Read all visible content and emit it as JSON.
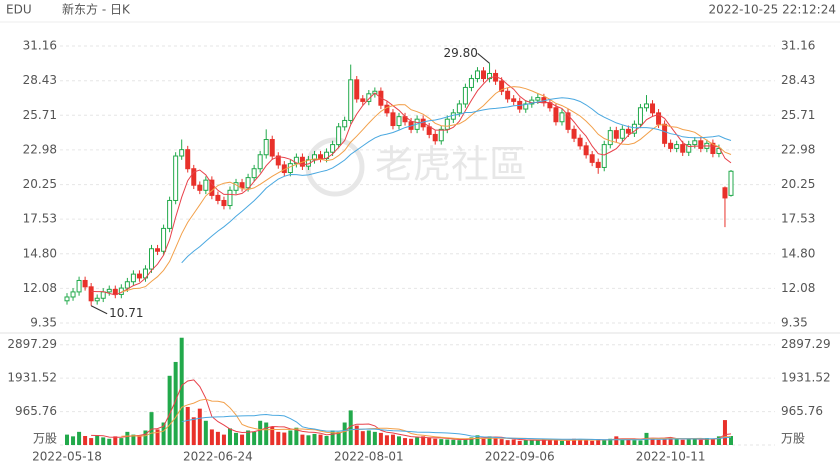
{
  "header": {
    "symbol": "EDU",
    "name": "新东方 - 日K",
    "timestamp": "2022-10-25 22:12:24",
    "watermark": "老虎社區"
  },
  "chart_data": {
    "type": "candlestick",
    "categories": [
      "2022-05-18",
      null,
      null,
      null,
      null,
      null,
      null,
      null,
      null,
      null,
      null,
      null,
      null,
      null,
      null,
      null,
      null,
      null,
      null,
      null,
      null,
      null,
      null,
      null,
      null,
      "2022-06-24",
      null,
      null,
      null,
      null,
      null,
      null,
      null,
      null,
      null,
      null,
      null,
      null,
      null,
      null,
      null,
      null,
      null,
      null,
      null,
      null,
      null,
      null,
      null,
      null,
      "2022-08-01",
      null,
      null,
      null,
      null,
      null,
      null,
      null,
      null,
      null,
      null,
      null,
      null,
      null,
      null,
      null,
      null,
      null,
      null,
      null,
      null,
      null,
      null,
      null,
      null,
      "2022-09-06",
      null,
      null,
      null,
      null,
      null,
      null,
      null,
      null,
      null,
      null,
      null,
      null,
      null,
      null,
      null,
      null,
      null,
      null,
      null,
      null,
      null,
      null,
      null,
      null,
      "2022-10-11",
      null,
      null,
      null,
      null,
      null,
      null,
      null,
      null,
      null,
      null
    ],
    "open": [
      11.1,
      11.4,
      11.8,
      12.7,
      12.2,
      11.1,
      11.3,
      11.8,
      12.0,
      11.6,
      12.1,
      12.6,
      13.2,
      12.9,
      13.6,
      15.2,
      15.0,
      16.8,
      19.0,
      22.5,
      23.0,
      21.5,
      20.2,
      19.8,
      20.6,
      19.4,
      19.0,
      18.6,
      19.8,
      20.4,
      20.0,
      20.8,
      21.5,
      22.6,
      23.8,
      22.5,
      21.8,
      21.2,
      21.9,
      22.4,
      21.7,
      22.2,
      22.6,
      22.3,
      22.8,
      23.4,
      24.8,
      25.3,
      28.5,
      27.0,
      26.8,
      27.4,
      27.6,
      26.5,
      25.9,
      24.9,
      25.6,
      25.2,
      24.6,
      25.4,
      24.8,
      24.2,
      23.7,
      24.6,
      25.4,
      25.9,
      26.6,
      27.9,
      28.6,
      29.2,
      28.6,
      29.0,
      28.4,
      27.6,
      27.0,
      26.8,
      26.2,
      26.6,
      26.9,
      27.1,
      26.7,
      26.3,
      25.2,
      25.9,
      24.6,
      23.9,
      23.3,
      22.6,
      22.0,
      21.6,
      23.4,
      24.5,
      23.9,
      24.6,
      24.3,
      25.0,
      26.3,
      26.6,
      25.9,
      25.0,
      23.5,
      23.1,
      23.4,
      22.8,
      23.4,
      23.7,
      23.1,
      23.5,
      22.7,
      20.0,
      19.4
    ],
    "high": [
      11.7,
      12.1,
      13.0,
      13.0,
      12.5,
      11.6,
      12.1,
      12.3,
      12.3,
      12.4,
      12.9,
      13.5,
      13.5,
      13.9,
      15.5,
      15.5,
      17.1,
      19.3,
      22.8,
      23.8,
      23.3,
      21.8,
      20.5,
      20.9,
      20.9,
      19.7,
      19.3,
      20.1,
      20.7,
      20.7,
      21.1,
      21.8,
      22.9,
      24.6,
      24.1,
      22.8,
      22.1,
      22.2,
      22.7,
      22.7,
      22.5,
      22.9,
      22.9,
      23.1,
      23.7,
      25.1,
      25.6,
      29.7,
      28.8,
      27.3,
      27.7,
      27.9,
      27.9,
      26.8,
      26.2,
      25.9,
      25.9,
      25.5,
      25.7,
      25.7,
      25.1,
      24.5,
      24.9,
      25.7,
      26.2,
      26.9,
      28.2,
      28.9,
      29.5,
      29.5,
      29.8,
      29.3,
      28.7,
      27.9,
      27.3,
      27.1,
      26.9,
      27.2,
      27.4,
      27.4,
      27.0,
      26.6,
      26.2,
      26.2,
      24.9,
      24.2,
      23.6,
      22.9,
      22.3,
      23.7,
      24.8,
      24.8,
      24.9,
      24.9,
      25.3,
      26.6,
      27.3,
      26.9,
      26.2,
      25.3,
      23.8,
      23.7,
      23.7,
      23.7,
      24.0,
      24.0,
      23.8,
      23.8,
      23.4,
      20.1,
      21.4
    ],
    "low": [
      10.8,
      11.1,
      11.5,
      11.9,
      10.71,
      10.8,
      11.0,
      11.5,
      11.3,
      11.3,
      11.8,
      12.3,
      12.6,
      12.6,
      13.3,
      14.7,
      14.7,
      16.5,
      18.7,
      22.2,
      21.2,
      19.9,
      19.5,
      19.5,
      19.1,
      18.7,
      18.3,
      18.3,
      19.5,
      19.7,
      19.7,
      20.5,
      21.2,
      22.3,
      22.2,
      21.5,
      20.9,
      20.9,
      21.6,
      21.4,
      21.4,
      21.9,
      22.0,
      22.0,
      22.5,
      23.1,
      24.5,
      25.0,
      26.7,
      26.5,
      26.5,
      27.1,
      26.2,
      25.6,
      24.6,
      24.6,
      24.9,
      24.3,
      24.3,
      24.5,
      23.9,
      23.4,
      23.4,
      24.3,
      25.1,
      25.6,
      26.3,
      27.6,
      28.3,
      28.3,
      28.3,
      28.1,
      27.3,
      26.7,
      26.5,
      25.9,
      25.9,
      26.3,
      26.6,
      26.4,
      26.0,
      24.9,
      24.9,
      24.3,
      23.6,
      23.0,
      22.3,
      21.7,
      21.1,
      21.3,
      23.1,
      23.6,
      23.6,
      24.0,
      24.0,
      24.7,
      26.0,
      25.6,
      24.7,
      23.2,
      22.8,
      22.8,
      22.5,
      22.5,
      23.1,
      22.8,
      22.8,
      22.4,
      22.4,
      16.9,
      19.3
    ],
    "close": [
      11.4,
      11.8,
      12.7,
      12.2,
      11.1,
      11.3,
      11.8,
      12.0,
      11.6,
      12.1,
      12.6,
      13.2,
      12.9,
      13.6,
      15.2,
      15.0,
      16.8,
      19.0,
      22.5,
      23.0,
      21.5,
      20.2,
      19.8,
      20.6,
      19.4,
      19.0,
      18.6,
      19.8,
      20.4,
      20.0,
      20.8,
      21.5,
      22.6,
      23.8,
      22.5,
      21.8,
      21.2,
      21.9,
      22.4,
      21.7,
      22.2,
      22.6,
      22.3,
      22.8,
      23.4,
      24.8,
      25.3,
      28.5,
      27.0,
      26.8,
      27.4,
      27.6,
      26.5,
      25.9,
      24.9,
      25.6,
      25.2,
      24.6,
      25.4,
      24.8,
      24.2,
      23.7,
      24.6,
      25.4,
      25.9,
      26.6,
      27.9,
      28.6,
      29.2,
      28.6,
      29.0,
      28.4,
      27.6,
      27.0,
      26.8,
      26.2,
      26.6,
      26.9,
      27.1,
      26.7,
      26.3,
      25.2,
      25.9,
      24.6,
      23.9,
      23.3,
      22.6,
      22.0,
      21.6,
      23.4,
      24.5,
      23.9,
      24.6,
      24.3,
      25.0,
      26.3,
      26.6,
      25.9,
      25.0,
      23.5,
      23.1,
      23.4,
      22.8,
      23.4,
      23.7,
      23.1,
      23.5,
      22.7,
      23.1,
      19.2,
      21.3
    ],
    "volume": [
      300,
      250,
      380,
      260,
      200,
      280,
      220,
      180,
      250,
      200,
      380,
      300,
      250,
      420,
      950,
      450,
      650,
      2000,
      2400,
      3100,
      1100,
      800,
      1050,
      700,
      450,
      380,
      300,
      480,
      350,
      300,
      420,
      380,
      700,
      650,
      520,
      380,
      360,
      420,
      500,
      300,
      280,
      320,
      300,
      260,
      420,
      380,
      650,
      1000,
      560,
      400,
      420,
      380,
      350,
      280,
      300,
      250,
      200,
      180,
      220,
      250,
      200,
      180,
      170,
      160,
      150,
      140,
      180,
      220,
      280,
      200,
      250,
      210,
      170,
      140,
      160,
      120,
      150,
      140,
      130,
      160,
      140,
      150,
      120,
      130,
      180,
      160,
      140,
      120,
      170,
      150,
      180,
      250,
      160,
      170,
      140,
      130,
      350,
      200,
      150,
      180,
      220,
      170,
      150,
      160,
      180,
      150,
      200,
      180,
      250,
      720,
      260
    ],
    "up_color": "#22a94b",
    "down_color": "#e8312a",
    "moving_averages": [
      {
        "period": 5,
        "color": "#e8414a"
      },
      {
        "period": 10,
        "color": "#f2a04a"
      },
      {
        "period": 20,
        "color": "#4aa8e0"
      }
    ],
    "volume_moving_averages": [
      {
        "period": 5,
        "color": "#e8414a"
      },
      {
        "period": 10,
        "color": "#f2a04a"
      },
      {
        "period": 20,
        "color": "#4aa8e0"
      }
    ],
    "ylim": [
      8.8,
      32.03
    ],
    "yticks": [
      9.35,
      12.08,
      {
        "value": 14.8,
        "label": "14.80"
      },
      17.53,
      20.25,
      22.98,
      25.71,
      28.43,
      31.16
    ],
    "y2lim": [
      0,
      3150
    ],
    "y2ticks": [
      {
        "value": 0,
        "label": "万股"
      },
      965.76,
      1931.52,
      2897.29
    ],
    "annotations": [
      {
        "label": "29.80",
        "value": 29.8
      },
      {
        "label": "10.71",
        "value": 10.71
      }
    ],
    "grid": true
  }
}
